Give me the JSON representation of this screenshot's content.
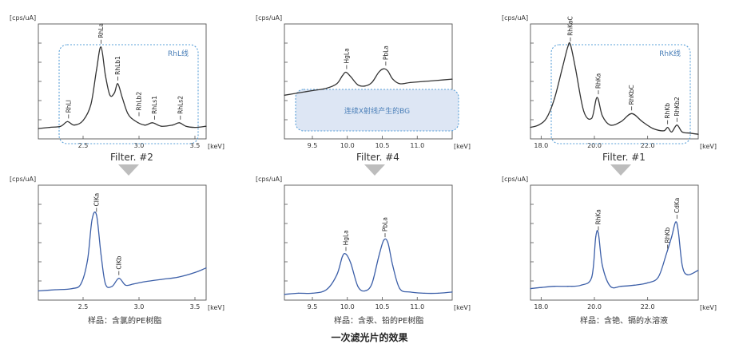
{
  "title": "一次滤光片的效果",
  "chart_data": [
    {
      "type": "line",
      "row": "top",
      "col": 0,
      "ylabel": "[cps/uA]",
      "xlabel": "[keV]",
      "xlim": [
        2.1,
        3.6
      ],
      "xticks": [
        2.5,
        3.0,
        3.5
      ],
      "xticklabels": [
        "2.5",
        "3.0",
        "3.5"
      ],
      "series_color": "#333333",
      "x": [
        2.1,
        2.2,
        2.3,
        2.36,
        2.42,
        2.5,
        2.57,
        2.62,
        2.66,
        2.7,
        2.74,
        2.78,
        2.81,
        2.85,
        2.9,
        2.96,
        3.05,
        3.12,
        3.2,
        3.3,
        3.36,
        3.42,
        3.5,
        3.6
      ],
      "y": [
        0.09,
        0.1,
        0.11,
        0.15,
        0.12,
        0.16,
        0.3,
        0.6,
        0.8,
        0.55,
        0.38,
        0.4,
        0.48,
        0.36,
        0.22,
        0.16,
        0.12,
        0.14,
        0.11,
        0.12,
        0.14,
        0.11,
        0.1,
        0.11
      ],
      "peaks": [
        {
          "label": "RhLl",
          "x": 2.37,
          "y": 0.15
        },
        {
          "label": "RhLa",
          "x": 2.66,
          "y": 0.8
        },
        {
          "label": "RhLb1",
          "x": 2.81,
          "y": 0.48
        },
        {
          "label": "RhLb2",
          "x": 3.0,
          "y": 0.17
        },
        {
          "label": "RhLs1",
          "x": 3.14,
          "y": 0.14
        },
        {
          "label": "RhLs2",
          "x": 3.37,
          "y": 0.14
        }
      ],
      "annotation": {
        "text": "RhL线"
      }
    },
    {
      "type": "line",
      "row": "top",
      "col": 1,
      "ylabel": "[cps/uA]",
      "xlabel": "[keV]",
      "xlim": [
        9.1,
        11.5
      ],
      "xticks": [
        9.5,
        10.0,
        10.5,
        11.0
      ],
      "xticklabels": [
        "9.5",
        "10.0",
        "10.5",
        "11.0"
      ],
      "series_color": "#333333",
      "x": [
        9.1,
        9.3,
        9.5,
        9.7,
        9.85,
        9.93,
        9.98,
        10.05,
        10.15,
        10.25,
        10.35,
        10.45,
        10.52,
        10.58,
        10.65,
        10.75,
        10.9,
        11.1,
        11.3,
        11.5
      ],
      "y": [
        0.38,
        0.4,
        0.42,
        0.44,
        0.48,
        0.55,
        0.58,
        0.54,
        0.47,
        0.46,
        0.49,
        0.58,
        0.61,
        0.59,
        0.52,
        0.48,
        0.49,
        0.5,
        0.51,
        0.52
      ],
      "peaks": [
        {
          "label": "HgLa",
          "x": 9.99,
          "y": 0.58
        },
        {
          "label": "PbLa",
          "x": 10.55,
          "y": 0.61
        }
      ],
      "annotation": {
        "text": "连续X射线产生的BG"
      }
    },
    {
      "type": "line",
      "row": "top",
      "col": 2,
      "ylabel": "[cps/uA]",
      "xlabel": "[keV]",
      "xlim": [
        17.6,
        23.9
      ],
      "xticks": [
        18.0,
        20.0,
        22.0
      ],
      "xticklabels": [
        "18.0",
        "20.0",
        "22.0"
      ],
      "series_color": "#333333",
      "x": [
        17.6,
        17.9,
        18.2,
        18.5,
        18.8,
        19.0,
        19.1,
        19.3,
        19.6,
        19.9,
        20.1,
        20.3,
        20.6,
        21.0,
        21.4,
        21.8,
        22.2,
        22.6,
        22.75,
        22.9,
        23.1,
        23.3,
        23.6,
        23.9
      ],
      "y": [
        0.1,
        0.12,
        0.18,
        0.35,
        0.62,
        0.8,
        0.82,
        0.6,
        0.24,
        0.18,
        0.36,
        0.2,
        0.12,
        0.15,
        0.22,
        0.15,
        0.09,
        0.07,
        0.1,
        0.06,
        0.12,
        0.06,
        0.05,
        0.04
      ],
      "peaks": [
        {
          "label": "RhKaC",
          "x": 19.1,
          "y": 0.82
        },
        {
          "label": "RhKa",
          "x": 20.15,
          "y": 0.36
        },
        {
          "label": "RhKbC",
          "x": 21.4,
          "y": 0.22
        },
        {
          "label": "RhKb",
          "x": 22.75,
          "y": 0.1
        },
        {
          "label": "RhKb2",
          "x": 23.1,
          "y": 0.12
        }
      ],
      "annotation": {
        "text": "RhK线"
      }
    },
    {
      "type": "line",
      "row": "bottom",
      "col": 0,
      "ylabel": "[cps/uA]",
      "xlabel": "[keV]",
      "xlim": [
        2.1,
        3.6
      ],
      "xticks": [
        2.5,
        3.0,
        3.5
      ],
      "xticklabels": [
        "2.5",
        "3.0",
        "3.5"
      ],
      "series_color": "#3c5fa8",
      "x": [
        2.1,
        2.25,
        2.4,
        2.48,
        2.54,
        2.58,
        2.62,
        2.66,
        2.7,
        2.76,
        2.82,
        2.88,
        2.95,
        3.05,
        3.2,
        3.35,
        3.5,
        3.6
      ],
      "y": [
        0.08,
        0.09,
        0.1,
        0.14,
        0.35,
        0.7,
        0.74,
        0.4,
        0.14,
        0.12,
        0.19,
        0.13,
        0.14,
        0.16,
        0.18,
        0.2,
        0.24,
        0.28
      ],
      "peaks": [
        {
          "label": "ClKa",
          "x": 2.62,
          "y": 0.74
        },
        {
          "label": "ClKb",
          "x": 2.82,
          "y": 0.19
        }
      ],
      "filter": "Filter. #2",
      "caption": "样品：含氯的PE树脂"
    },
    {
      "type": "line",
      "row": "bottom",
      "col": 1,
      "ylabel": "[cps/uA]",
      "xlabel": "[keV]",
      "xlim": [
        9.1,
        11.5
      ],
      "xticks": [
        9.5,
        10.0,
        10.5,
        11.0
      ],
      "xticklabels": [
        "9.5",
        "10.0",
        "10.5",
        "11.0"
      ],
      "series_color": "#3c5fa8",
      "x": [
        9.1,
        9.3,
        9.5,
        9.7,
        9.85,
        9.93,
        9.98,
        10.05,
        10.15,
        10.25,
        10.35,
        10.45,
        10.52,
        10.58,
        10.65,
        10.75,
        10.9,
        11.1,
        11.3,
        11.5
      ],
      "y": [
        0.05,
        0.06,
        0.06,
        0.09,
        0.22,
        0.38,
        0.4,
        0.32,
        0.12,
        0.08,
        0.14,
        0.38,
        0.52,
        0.5,
        0.3,
        0.1,
        0.07,
        0.06,
        0.06,
        0.07
      ],
      "peaks": [
        {
          "label": "HgLa",
          "x": 9.98,
          "y": 0.4
        },
        {
          "label": "PbLa",
          "x": 10.54,
          "y": 0.52
        }
      ],
      "filter": "Filter. #4",
      "caption": "样品：含汞、铅的PE树脂"
    },
    {
      "type": "line",
      "row": "bottom",
      "col": 2,
      "ylabel": "[cps/uA]",
      "xlabel": "[keV]",
      "xlim": [
        17.6,
        23.9
      ],
      "xticks": [
        18.0,
        20.0,
        22.0
      ],
      "xticklabels": [
        "18.0",
        "20.0",
        "22.0"
      ],
      "series_color": "#3c5fa8",
      "x": [
        17.6,
        18.0,
        18.5,
        19.0,
        19.5,
        19.9,
        20.05,
        20.15,
        20.3,
        20.6,
        21.0,
        21.5,
        22.0,
        22.4,
        22.7,
        22.9,
        23.05,
        23.15,
        23.3,
        23.5,
        23.9
      ],
      "y": [
        0.1,
        0.11,
        0.12,
        0.12,
        0.13,
        0.2,
        0.55,
        0.58,
        0.3,
        0.12,
        0.12,
        0.13,
        0.15,
        0.2,
        0.4,
        0.55,
        0.68,
        0.6,
        0.3,
        0.22,
        0.26
      ],
      "peaks": [
        {
          "label": "RhKa",
          "x": 20.15,
          "y": 0.58
        },
        {
          "label": "RhKb",
          "x": 22.75,
          "y": 0.42
        },
        {
          "label": "CdKa",
          "x": 23.1,
          "y": 0.68
        }
      ],
      "filter": "Filter. #1",
      "caption": "样品：含铯、镉的水溶液"
    }
  ]
}
